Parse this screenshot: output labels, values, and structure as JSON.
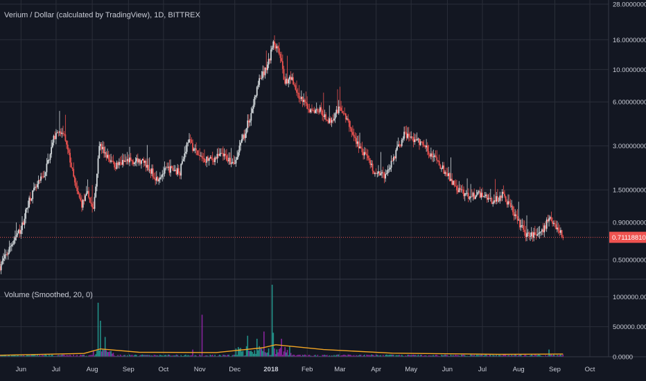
{
  "chart_data": [
    {
      "type": "candlestick",
      "title": "Verium / Dollar (calculated by TradingView), 1D, BITTREX",
      "y_scale": "log",
      "ylim": [
        0.38,
        28
      ],
      "y_ticks": [
        "28.00000000",
        "16.00000000",
        "10.00000000",
        "6.00000000",
        "3.00000000",
        "1.50000000",
        "0.90000000",
        "0.50000000"
      ],
      "y_tick_values": [
        28,
        16,
        10,
        6,
        3,
        1.5,
        0.9,
        0.5
      ],
      "last_price": "0.71118810",
      "last_price_value": 0.7112,
      "x_ticks": [
        "Jun",
        "Jul",
        "Aug",
        "Sep",
        "Oct",
        "Nov",
        "Dec",
        "2018",
        "Feb",
        "Mar",
        "Apr",
        "May",
        "Jun",
        "Jul",
        "Aug",
        "Sep",
        "Oct"
      ],
      "x_tick_dates": [
        "2017-06-01",
        "2017-07-01",
        "2017-08-01",
        "2017-09-01",
        "2017-10-01",
        "2017-11-01",
        "2017-12-01",
        "2018-01-01",
        "2018-02-01",
        "2018-03-01",
        "2018-04-01",
        "2018-05-01",
        "2018-06-01",
        "2018-07-01",
        "2018-08-01",
        "2018-09-01",
        "2018-10-01"
      ],
      "date_range": [
        "2017-05-14",
        "2018-10-17"
      ],
      "price_path": [
        [
          "2017-05-14",
          0.45
        ],
        [
          "2017-05-20",
          0.55
        ],
        [
          "2017-05-27",
          0.72
        ],
        [
          "2017-06-01",
          0.8
        ],
        [
          "2017-06-08",
          1.3
        ],
        [
          "2017-06-15",
          1.6
        ],
        [
          "2017-06-22",
          2.0
        ],
        [
          "2017-06-28",
          3.2
        ],
        [
          "2017-07-03",
          3.9
        ],
        [
          "2017-07-08",
          3.4
        ],
        [
          "2017-07-13",
          2.4
        ],
        [
          "2017-07-18",
          1.5
        ],
        [
          "2017-07-23",
          1.2
        ],
        [
          "2017-07-28",
          1.4
        ],
        [
          "2017-08-02",
          1.1
        ],
        [
          "2017-08-07",
          3.1
        ],
        [
          "2017-08-14",
          2.5
        ],
        [
          "2017-08-21",
          2.2
        ],
        [
          "2017-09-01",
          2.4
        ],
        [
          "2017-09-15",
          2.3
        ],
        [
          "2017-09-25",
          1.8
        ],
        [
          "2017-10-05",
          2.1
        ],
        [
          "2017-10-15",
          2.0
        ],
        [
          "2017-10-22",
          3.3
        ],
        [
          "2017-11-01",
          2.5
        ],
        [
          "2017-11-10",
          2.4
        ],
        [
          "2017-11-20",
          2.6
        ],
        [
          "2017-12-01",
          2.3
        ],
        [
          "2017-12-08",
          3.4
        ],
        [
          "2017-12-15",
          5.0
        ],
        [
          "2017-12-22",
          8.5
        ],
        [
          "2017-12-28",
          10.0
        ],
        [
          "2018-01-03",
          15.0
        ],
        [
          "2018-01-08",
          13.0
        ],
        [
          "2018-01-13",
          8.2
        ],
        [
          "2018-01-18",
          9.0
        ],
        [
          "2018-01-25",
          6.5
        ],
        [
          "2018-02-02",
          5.4
        ],
        [
          "2018-02-12",
          5.3
        ],
        [
          "2018-02-20",
          4.4
        ],
        [
          "2018-03-01",
          5.6
        ],
        [
          "2018-03-08",
          4.3
        ],
        [
          "2018-03-15",
          3.2
        ],
        [
          "2018-03-22",
          2.6
        ],
        [
          "2018-04-01",
          1.9
        ],
        [
          "2018-04-08",
          1.9
        ],
        [
          "2018-04-15",
          2.4
        ],
        [
          "2018-04-25",
          3.6
        ],
        [
          "2018-05-05",
          3.3
        ],
        [
          "2018-05-12",
          3.0
        ],
        [
          "2018-05-22",
          2.4
        ],
        [
          "2018-06-01",
          1.9
        ],
        [
          "2018-06-10",
          1.5
        ],
        [
          "2018-06-20",
          1.35
        ],
        [
          "2018-07-01",
          1.4
        ],
        [
          "2018-07-10",
          1.25
        ],
        [
          "2018-07-18",
          1.4
        ],
        [
          "2018-07-25",
          1.15
        ],
        [
          "2018-08-01",
          0.9
        ],
        [
          "2018-08-08",
          0.72
        ],
        [
          "2018-08-15",
          0.75
        ],
        [
          "2018-08-22",
          0.78
        ],
        [
          "2018-08-27",
          1.0
        ],
        [
          "2018-09-02",
          0.85
        ],
        [
          "2018-09-08",
          0.71
        ]
      ]
    },
    {
      "type": "bar",
      "title": "Volume (Smoothed, 20, 0)",
      "ylim": [
        0,
        1200000
      ],
      "y_ticks": [
        "1000000.0000",
        "500000.0000",
        "0.0000"
      ],
      "y_tick_values": [
        1000000,
        500000,
        0
      ],
      "spikes": [
        [
          "2017-08-06",
          900000
        ],
        [
          "2017-08-08",
          600000
        ],
        [
          "2017-08-12",
          330000
        ],
        [
          "2017-10-26",
          120000
        ],
        [
          "2017-11-03",
          700000
        ],
        [
          "2017-12-12",
          350000
        ],
        [
          "2017-12-20",
          300000
        ],
        [
          "2017-12-26",
          420000
        ],
        [
          "2018-01-02",
          1200000
        ],
        [
          "2018-01-03",
          400000
        ],
        [
          "2018-01-10",
          300000
        ],
        [
          "2018-08-27",
          120000
        ]
      ],
      "ma_path": [
        [
          "2017-05-14",
          25000
        ],
        [
          "2017-07-25",
          55000
        ],
        [
          "2017-08-08",
          130000
        ],
        [
          "2017-09-10",
          75000
        ],
        [
          "2017-11-15",
          70000
        ],
        [
          "2017-12-25",
          150000
        ],
        [
          "2018-01-05",
          200000
        ],
        [
          "2018-02-15",
          120000
        ],
        [
          "2018-04-15",
          60000
        ],
        [
          "2018-07-15",
          40000
        ],
        [
          "2018-09-08",
          45000
        ]
      ],
      "colors": {
        "ma": "#f5a623",
        "volume_up": "#26a69a",
        "volume_down": "#9c27b0"
      }
    }
  ],
  "colors": {
    "background": "#131722",
    "grid": "#2a2e39",
    "up": "#d6dcdf",
    "down": "#ef5350",
    "price_label": "#ef5350"
  }
}
